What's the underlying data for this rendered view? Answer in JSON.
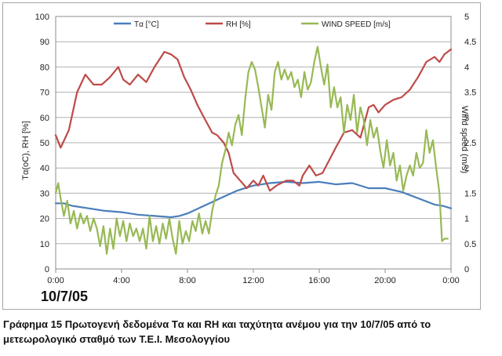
{
  "chart_data": {
    "type": "line",
    "ylabel_left": "Tα(oC), RH [%]",
    "ylabel_right": "Wind speed (m/s)",
    "x_ticks": [
      "0:00",
      "4:00",
      "8:00",
      "12:00",
      "16:00",
      "20:00",
      "0:00"
    ],
    "x_range_hours": [
      0,
      24
    ],
    "y_left_ticks": [
      "0",
      "10",
      "20",
      "30",
      "40",
      "50",
      "60",
      "70",
      "80",
      "90",
      "100"
    ],
    "y_left_range": [
      0,
      100
    ],
    "y_right_ticks": [
      "0",
      "0.5",
      "1",
      "1.5",
      "2",
      "2.5",
      "3",
      "3.5",
      "4",
      "4.5",
      "5"
    ],
    "y_right_range": [
      0,
      5
    ],
    "legend_position": "top",
    "series": [
      {
        "name": "Tα [°C]",
        "axis": "left",
        "color": "#4a7ebb",
        "points": [
          [
            0,
            26
          ],
          [
            0.5,
            26
          ],
          [
            1,
            25
          ],
          [
            2,
            24
          ],
          [
            3,
            23
          ],
          [
            4,
            22.5
          ],
          [
            5,
            21.5
          ],
          [
            6,
            21
          ],
          [
            7,
            20.5
          ],
          [
            7.5,
            21
          ],
          [
            8,
            22
          ],
          [
            9,
            25
          ],
          [
            10,
            28
          ],
          [
            11,
            31
          ],
          [
            12,
            33
          ],
          [
            13,
            34
          ],
          [
            14,
            34.5
          ],
          [
            15,
            34
          ],
          [
            16,
            34.5
          ],
          [
            16.5,
            34
          ],
          [
            17,
            33.5
          ],
          [
            18,
            34
          ],
          [
            19,
            32
          ],
          [
            20,
            32
          ],
          [
            21,
            30.5
          ],
          [
            22,
            28
          ],
          [
            23,
            25.5
          ],
          [
            23.5,
            25
          ],
          [
            24,
            24
          ]
        ]
      },
      {
        "name": "RH [%]",
        "axis": "left",
        "color": "#be4b48",
        "points": [
          [
            0,
            53
          ],
          [
            0.3,
            48
          ],
          [
            0.8,
            55
          ],
          [
            1.3,
            70
          ],
          [
            1.8,
            77
          ],
          [
            2.3,
            73
          ],
          [
            2.8,
            73
          ],
          [
            3.3,
            76
          ],
          [
            3.8,
            80
          ],
          [
            4.1,
            75
          ],
          [
            4.5,
            73
          ],
          [
            5,
            77
          ],
          [
            5.5,
            74
          ],
          [
            6,
            80
          ],
          [
            6.6,
            86
          ],
          [
            7,
            85
          ],
          [
            7.4,
            83
          ],
          [
            7.8,
            76
          ],
          [
            8.2,
            71
          ],
          [
            8.6,
            65
          ],
          [
            9,
            60
          ],
          [
            9.5,
            54
          ],
          [
            9.8,
            53
          ],
          [
            10.2,
            50
          ],
          [
            10.5,
            46
          ],
          [
            10.8,
            38
          ],
          [
            11.2,
            35
          ],
          [
            11.6,
            32
          ],
          [
            12,
            35
          ],
          [
            12.3,
            33
          ],
          [
            12.6,
            37
          ],
          [
            13,
            31
          ],
          [
            13.4,
            33
          ],
          [
            14,
            35
          ],
          [
            14.4,
            35
          ],
          [
            14.8,
            33
          ],
          [
            15,
            37
          ],
          [
            15.4,
            41
          ],
          [
            15.8,
            37
          ],
          [
            16.2,
            38
          ],
          [
            16.6,
            43
          ],
          [
            17,
            48
          ],
          [
            17.5,
            54
          ],
          [
            18,
            55
          ],
          [
            18.5,
            52
          ],
          [
            19,
            64
          ],
          [
            19.3,
            65
          ],
          [
            19.6,
            62
          ],
          [
            20,
            65
          ],
          [
            20.5,
            67
          ],
          [
            21,
            68
          ],
          [
            21.5,
            71
          ],
          [
            22,
            76
          ],
          [
            22.5,
            82
          ],
          [
            23,
            84
          ],
          [
            23.3,
            82
          ],
          [
            23.6,
            85
          ],
          [
            24,
            87
          ]
        ]
      },
      {
        "name": "WIND SPEED [m/s]",
        "axis": "right",
        "color": "#98b954",
        "points": [
          [
            0,
            1.5
          ],
          [
            0.15,
            1.7
          ],
          [
            0.3,
            1.4
          ],
          [
            0.5,
            1.05
          ],
          [
            0.7,
            1.35
          ],
          [
            0.9,
            0.9
          ],
          [
            1.1,
            1.15
          ],
          [
            1.3,
            0.8
          ],
          [
            1.5,
            1.1
          ],
          [
            1.7,
            0.9
          ],
          [
            1.9,
            1.05
          ],
          [
            2.1,
            0.75
          ],
          [
            2.3,
            1.0
          ],
          [
            2.5,
            0.8
          ],
          [
            2.7,
            0.45
          ],
          [
            2.9,
            0.85
          ],
          [
            3.1,
            0.3
          ],
          [
            3.3,
            0.8
          ],
          [
            3.5,
            0.4
          ],
          [
            3.7,
            1.0
          ],
          [
            3.9,
            0.65
          ],
          [
            4.1,
            0.95
          ],
          [
            4.3,
            0.55
          ],
          [
            4.5,
            0.9
          ],
          [
            4.7,
            0.65
          ],
          [
            4.9,
            0.8
          ],
          [
            5.1,
            0.55
          ],
          [
            5.3,
            0.8
          ],
          [
            5.5,
            0.4
          ],
          [
            5.7,
            1.05
          ],
          [
            5.9,
            0.55
          ],
          [
            6.1,
            0.85
          ],
          [
            6.3,
            0.5
          ],
          [
            6.5,
            0.9
          ],
          [
            6.7,
            0.6
          ],
          [
            6.9,
            1.0
          ],
          [
            7.1,
            0.6
          ],
          [
            7.3,
            0.3
          ],
          [
            7.5,
            0.95
          ],
          [
            7.7,
            0.5
          ],
          [
            7.9,
            0.75
          ],
          [
            8.1,
            0.55
          ],
          [
            8.3,
            0.95
          ],
          [
            8.5,
            0.75
          ],
          [
            8.7,
            1.1
          ],
          [
            8.9,
            0.7
          ],
          [
            9.1,
            0.95
          ],
          [
            9.3,
            0.7
          ],
          [
            9.5,
            1.15
          ],
          [
            9.7,
            1.45
          ],
          [
            9.9,
            1.65
          ],
          [
            10.1,
            2.1
          ],
          [
            10.3,
            2.35
          ],
          [
            10.5,
            2.7
          ],
          [
            10.7,
            2.45
          ],
          [
            10.9,
            2.85
          ],
          [
            11.1,
            3.05
          ],
          [
            11.3,
            2.65
          ],
          [
            11.5,
            3.35
          ],
          [
            11.7,
            3.9
          ],
          [
            11.9,
            4.1
          ],
          [
            12.1,
            3.95
          ],
          [
            12.3,
            3.6
          ],
          [
            12.5,
            3.2
          ],
          [
            12.7,
            2.8
          ],
          [
            12.9,
            3.45
          ],
          [
            13.1,
            3.15
          ],
          [
            13.3,
            3.9
          ],
          [
            13.5,
            4.1
          ],
          [
            13.7,
            3.75
          ],
          [
            13.9,
            3.95
          ],
          [
            14.1,
            3.75
          ],
          [
            14.3,
            3.9
          ],
          [
            14.5,
            3.6
          ],
          [
            14.7,
            3.75
          ],
          [
            14.9,
            3.4
          ],
          [
            15.1,
            3.9
          ],
          [
            15.3,
            3.55
          ],
          [
            15.5,
            3.7
          ],
          [
            15.7,
            4.1
          ],
          [
            15.9,
            4.4
          ],
          [
            16.1,
            4.0
          ],
          [
            16.3,
            3.65
          ],
          [
            16.5,
            4.05
          ],
          [
            16.7,
            3.2
          ],
          [
            16.9,
            3.6
          ],
          [
            17.1,
            3.2
          ],
          [
            17.3,
            3.4
          ],
          [
            17.5,
            2.7
          ],
          [
            17.7,
            3.25
          ],
          [
            17.9,
            2.95
          ],
          [
            18.1,
            3.45
          ],
          [
            18.3,
            2.7
          ],
          [
            18.5,
            3.2
          ],
          [
            18.7,
            2.95
          ],
          [
            18.9,
            2.45
          ],
          [
            19.1,
            2.95
          ],
          [
            19.3,
            2.6
          ],
          [
            19.5,
            2.8
          ],
          [
            19.7,
            2.35
          ],
          [
            19.9,
            2.0
          ],
          [
            20.1,
            2.55
          ],
          [
            20.3,
            2.05
          ],
          [
            20.5,
            2.3
          ],
          [
            20.7,
            1.75
          ],
          [
            20.9,
            2.05
          ],
          [
            21.1,
            1.55
          ],
          [
            21.3,
            1.85
          ],
          [
            21.5,
            2.05
          ],
          [
            21.7,
            1.85
          ],
          [
            21.9,
            2.3
          ],
          [
            22.1,
            2.0
          ],
          [
            22.3,
            2.1
          ],
          [
            22.5,
            2.75
          ],
          [
            22.7,
            2.3
          ],
          [
            22.9,
            2.55
          ],
          [
            23.1,
            2.0
          ],
          [
            23.3,
            1.5
          ],
          [
            23.45,
            0.55
          ],
          [
            23.6,
            0.6
          ],
          [
            23.8,
            0.6
          ]
        ]
      }
    ]
  },
  "date_label": "10/7/05",
  "caption": {
    "line1": "Γράφημα 15 Πρωτογενή δεδομένα Tα και RH και ταχύτητα ανέμου για την 10/7/05 από το",
    "line2": "μετεωρολογικό σταθμό των Τ.Ε.Ι. Μεσολογγίου"
  }
}
